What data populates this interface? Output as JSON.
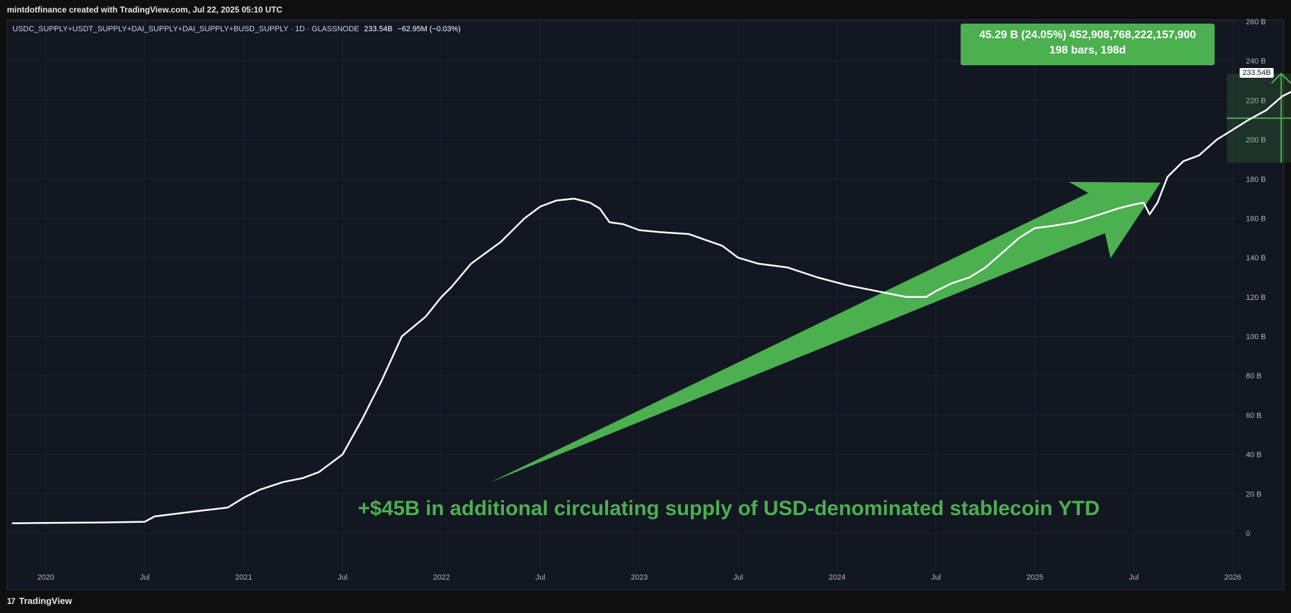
{
  "header": {
    "text": "mintdotfinance created with TradingView.com, Jul 22, 2025 05:10 UTC"
  },
  "symbol": {
    "name": "USDC_SUPPLY+USDT_SUPPLY+DAI_SUPPLY+DAI_SUPPLY+BUSD_SUPPLY · 1D · GLASSNODE",
    "last": "233.54B",
    "change": "−62.95M (−0.03%)"
  },
  "measure_tooltip": {
    "line1": "45.29 B (24.05%) 452,908,768,222,157,900",
    "line2": "198 bars, 198d"
  },
  "annotation": "+$45B in additional circulating supply of USD-denominated stablecoin YTD",
  "last_price_label": "233.54B",
  "footer": {
    "brand": "TradingView",
    "logo_icon": "tradingview-logo-icon"
  },
  "colors": {
    "background": "#131722",
    "line": "#ffffff",
    "accent_green": "#4caf50",
    "grid": "#1e222d",
    "axis_text": "#b2b5be"
  },
  "chart_data": {
    "type": "line",
    "title": "",
    "xlabel": "",
    "ylabel": "",
    "ylim": [
      0,
      260
    ],
    "y_unit": "B",
    "y_ticks": [
      "0",
      "20 B",
      "40 B",
      "60 B",
      "80 B",
      "100 B",
      "120 B",
      "140 B",
      "160 B",
      "180 B",
      "200 B",
      "220 B",
      "240 B",
      "260 B"
    ],
    "x_ticks": [
      "2020",
      "Jul",
      "2021",
      "Jul",
      "2022",
      "Jul",
      "2023",
      "Jul",
      "2024",
      "Jul",
      "2025",
      "Jul",
      "2026"
    ],
    "grid": true,
    "series": [
      {
        "values": [
          [
            2019.83,
            5
          ],
          [
            2020.0,
            5.2
          ],
          [
            2020.25,
            5.4
          ],
          [
            2020.5,
            5.8
          ],
          [
            2020.55,
            8.5
          ],
          [
            2020.75,
            11
          ],
          [
            2020.92,
            13
          ],
          [
            2021.0,
            18
          ],
          [
            2021.08,
            22
          ],
          [
            2021.2,
            26
          ],
          [
            2021.3,
            28
          ],
          [
            2021.38,
            31
          ],
          [
            2021.5,
            40
          ],
          [
            2021.6,
            58
          ],
          [
            2021.7,
            78
          ],
          [
            2021.8,
            100
          ],
          [
            2021.92,
            110
          ],
          [
            2022.0,
            120
          ],
          [
            2022.05,
            125
          ],
          [
            2022.15,
            137
          ],
          [
            2022.3,
            148
          ],
          [
            2022.42,
            160
          ],
          [
            2022.5,
            166
          ],
          [
            2022.58,
            169
          ],
          [
            2022.67,
            170
          ],
          [
            2022.75,
            168
          ],
          [
            2022.8,
            165
          ],
          [
            2022.85,
            158
          ],
          [
            2022.92,
            157
          ],
          [
            2023.0,
            154
          ],
          [
            2023.1,
            153
          ],
          [
            2023.25,
            152
          ],
          [
            2023.42,
            146
          ],
          [
            2023.5,
            140
          ],
          [
            2023.6,
            137
          ],
          [
            2023.75,
            135
          ],
          [
            2023.9,
            130
          ],
          [
            2024.05,
            126
          ],
          [
            2024.2,
            123
          ],
          [
            2024.35,
            120
          ],
          [
            2024.45,
            120
          ],
          [
            2024.5,
            123
          ],
          [
            2024.58,
            127
          ],
          [
            2024.67,
            130
          ],
          [
            2024.75,
            135
          ],
          [
            2024.83,
            142
          ],
          [
            2024.92,
            150
          ],
          [
            2025.0,
            155
          ],
          [
            2025.08,
            156
          ],
          [
            2025.2,
            158
          ],
          [
            2025.3,
            161
          ],
          [
            2025.42,
            165
          ],
          [
            2025.5,
            167
          ],
          [
            2025.55,
            168
          ],
          [
            2025.58,
            162
          ],
          [
            2025.62,
            168
          ],
          [
            2025.67,
            181
          ],
          [
            2025.75,
            189
          ],
          [
            2025.83,
            192
          ],
          [
            2025.92,
            200
          ],
          [
            2026.0,
            205
          ],
          [
            2026.08,
            210
          ],
          [
            2026.17,
            215
          ],
          [
            2026.25,
            222
          ],
          [
            2026.33,
            226
          ],
          [
            2026.42,
            230
          ],
          [
            2026.5,
            233.54
          ]
        ]
      }
    ]
  }
}
